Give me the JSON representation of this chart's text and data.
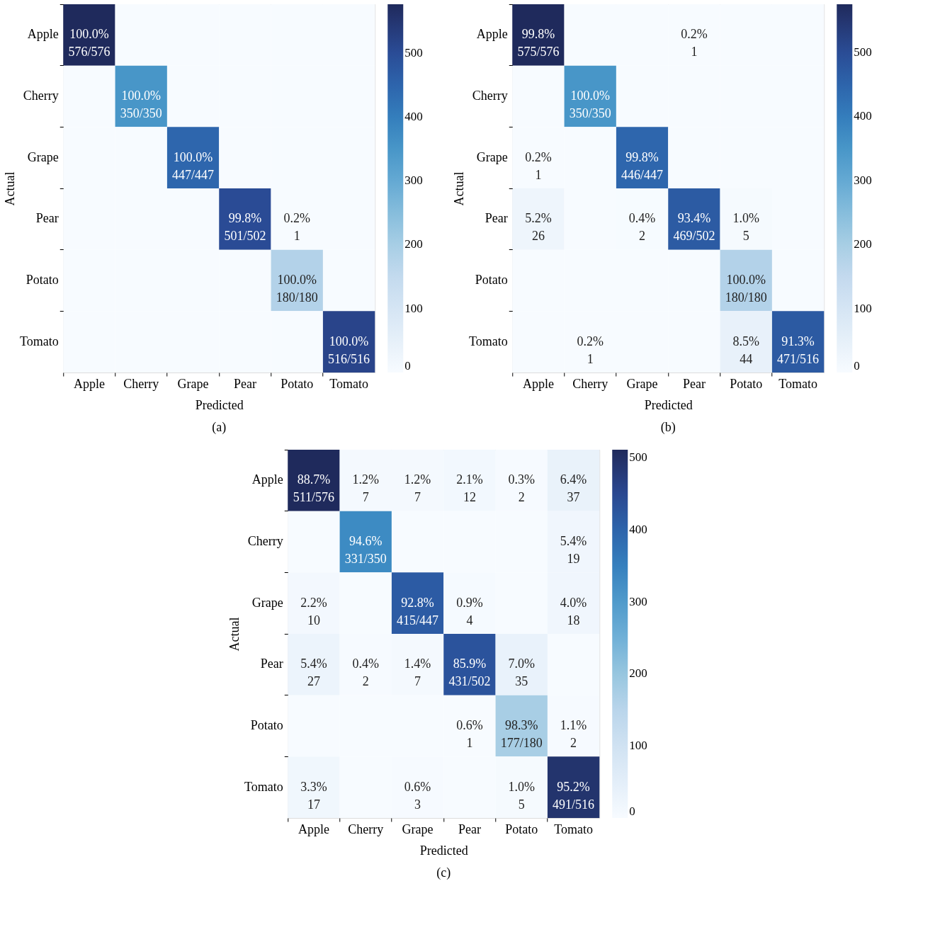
{
  "chart_data": [
    {
      "type": "heatmap",
      "title": "(a)",
      "xlabel": "Predicted",
      "ylabel": "Actual",
      "categories": [
        "Apple",
        "Cherry",
        "Grape",
        "Pear",
        "Potato",
        "Tomato"
      ],
      "y_categories": [
        "Apple",
        "Cherry",
        "Grape",
        "Pear",
        "Potato",
        "Tomato"
      ],
      "cells": [
        [
          576,
          0,
          0,
          0,
          0,
          0
        ],
        [
          0,
          350,
          0,
          0,
          0,
          0
        ],
        [
          0,
          0,
          447,
          0,
          0,
          0
        ],
        [
          0,
          0,
          0,
          501,
          1,
          0
        ],
        [
          0,
          0,
          0,
          0,
          180,
          0
        ],
        [
          0,
          0,
          0,
          0,
          0,
          516
        ]
      ],
      "cell_labels": [
        [
          "100.0%\n576/576",
          null,
          null,
          null,
          null,
          null
        ],
        [
          null,
          "100.0%\n350/350",
          null,
          null,
          null,
          null
        ],
        [
          null,
          null,
          "100.0%\n447/447",
          null,
          null,
          null
        ],
        [
          null,
          null,
          null,
          "99.8%\n501/502",
          "0.2%\n1",
          null
        ],
        [
          null,
          null,
          null,
          null,
          "100.0%\n180/180",
          null
        ],
        [
          null,
          null,
          null,
          null,
          null,
          "100.0%\n516/516"
        ]
      ],
      "clim": [
        0,
        576
      ],
      "cticks": [
        0,
        100,
        200,
        300,
        400,
        500
      ]
    },
    {
      "type": "heatmap",
      "title": "(b)",
      "xlabel": "Predicted",
      "ylabel": "Actual",
      "categories": [
        "Apple",
        "Cherry",
        "Grape",
        "Pear",
        "Potato",
        "Tomato"
      ],
      "y_categories": [
        "Apple",
        "Cherry",
        "Grape",
        "Pear",
        "Potato",
        "Tomato"
      ],
      "cells": [
        [
          575,
          0,
          0,
          1,
          0,
          0
        ],
        [
          0,
          350,
          0,
          0,
          0,
          0
        ],
        [
          1,
          0,
          446,
          0,
          0,
          0
        ],
        [
          26,
          0,
          2,
          469,
          5,
          0
        ],
        [
          0,
          0,
          0,
          0,
          180,
          0
        ],
        [
          0,
          1,
          0,
          0,
          44,
          471
        ]
      ],
      "cell_labels": [
        [
          "99.8%\n575/576",
          null,
          null,
          "0.2%\n1",
          null,
          null
        ],
        [
          null,
          "100.0%\n350/350",
          null,
          null,
          null,
          null
        ],
        [
          "0.2%\n1",
          null,
          "99.8%\n446/447",
          null,
          null,
          null
        ],
        [
          "5.2%\n26",
          null,
          "0.4%\n2",
          "93.4%\n469/502",
          "1.0%\n5",
          null
        ],
        [
          null,
          null,
          null,
          null,
          "100.0%\n180/180",
          null
        ],
        [
          null,
          "0.2%\n1",
          null,
          null,
          "8.5%\n44",
          "91.3%\n471/516"
        ]
      ],
      "clim": [
        0,
        575
      ],
      "cticks": [
        0,
        100,
        200,
        300,
        400,
        500
      ]
    },
    {
      "type": "heatmap",
      "title": "(c)",
      "xlabel": "Predicted",
      "ylabel": "Actual",
      "categories": [
        "Apple",
        "Cherry",
        "Grape",
        "Pear",
        "Potato",
        "Tomato"
      ],
      "y_categories": [
        "Apple",
        "Cherry",
        "Grape",
        "Pear",
        "Potato",
        "Tomato"
      ],
      "cells": [
        [
          511,
          7,
          7,
          12,
          2,
          37
        ],
        [
          0,
          331,
          0,
          0,
          0,
          19
        ],
        [
          10,
          0,
          415,
          4,
          0,
          18
        ],
        [
          27,
          2,
          7,
          431,
          35,
          0
        ],
        [
          0,
          0,
          0,
          1,
          177,
          2
        ],
        [
          17,
          0,
          3,
          0,
          5,
          491
        ]
      ],
      "cell_labels": [
        [
          "88.7%\n511/576",
          "1.2%\n7",
          "1.2%\n7",
          "2.1%\n12",
          "0.3%\n2",
          "6.4%\n37"
        ],
        [
          null,
          "94.6%\n331/350",
          null,
          null,
          null,
          "5.4%\n19"
        ],
        [
          "2.2%\n10",
          null,
          "92.8%\n415/447",
          "0.9%\n4",
          null,
          "4.0%\n18"
        ],
        [
          "5.4%\n27",
          "0.4%\n2",
          "1.4%\n7",
          "85.9%\n431/502",
          "7.0%\n35",
          null
        ],
        [
          null,
          null,
          null,
          "0.6%\n1",
          "98.3%\n177/180",
          "1.1%\n2"
        ],
        [
          "3.3%\n17",
          null,
          "0.6%\n3",
          null,
          "1.0%\n5",
          "95.2%\n491/516"
        ]
      ],
      "clim": [
        0,
        511
      ],
      "cticks": [
        0,
        100,
        200,
        300,
        400,
        500
      ]
    }
  ]
}
